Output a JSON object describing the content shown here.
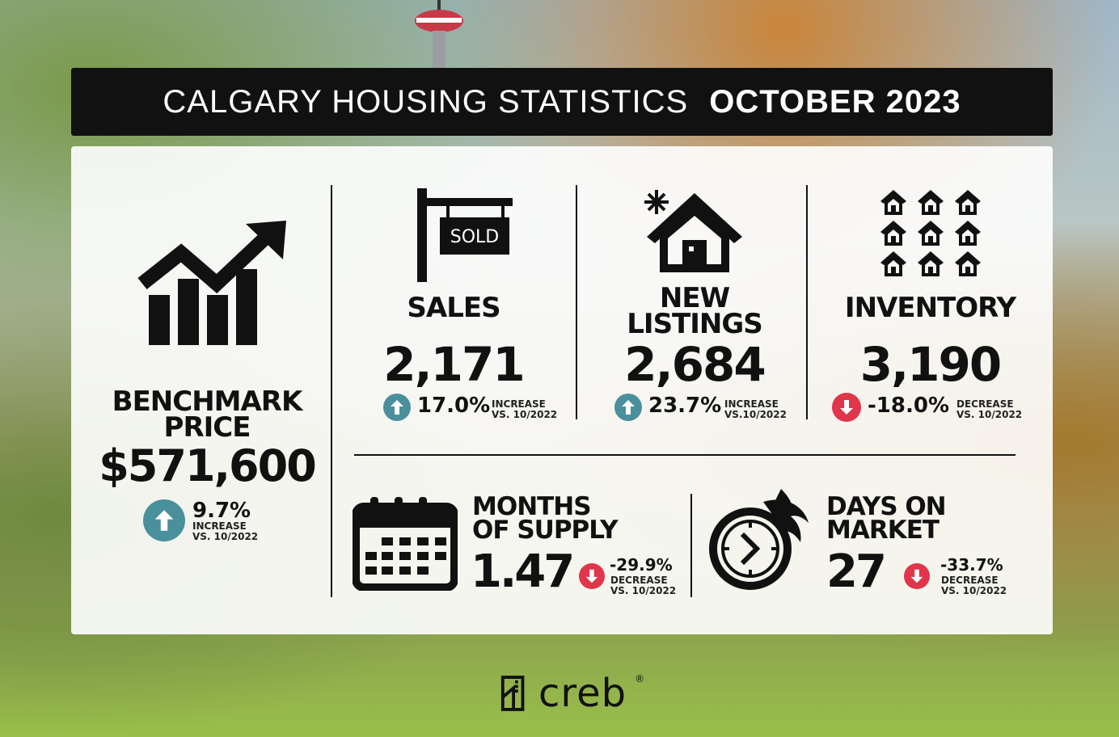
{
  "header": {
    "title": "CALGARY HOUSING STATISTICS",
    "period": "OCTOBER 2023"
  },
  "benchmark": {
    "label_line1": "BENCHMARK",
    "label_line2": "PRICE",
    "value": "$571,600",
    "change": "9.7%",
    "direction_text": "INCREASE",
    "compare": "VS. 10/2022",
    "icon": "growth-chart-icon",
    "trend_icon": "arrow-up-icon"
  },
  "sales": {
    "label": "SALES",
    "sign_text": "SOLD",
    "value": "2,171",
    "change": "17.0%",
    "direction_text": "INCREASE",
    "compare": "VS. 10/2022",
    "icon": "sold-sign-icon"
  },
  "new_listings": {
    "label_line1": "NEW",
    "label_line2": "LISTINGS",
    "value": "2,684",
    "change": "23.7%",
    "direction_text": "INCREASE",
    "compare": "VS.10/2022",
    "icon": "new-house-icon"
  },
  "inventory": {
    "label": "INVENTORY",
    "value": "3,190",
    "change": "-18.0%",
    "direction_text": "DECREASE",
    "compare": "VS. 10/2022",
    "icon": "houses-grid-icon"
  },
  "months_supply": {
    "label_line1": "MONTHS",
    "label_line2": "OF SUPPLY",
    "value": "1.47",
    "change": "-29.9%",
    "direction_text": "DECREASE",
    "compare": "VS. 10/2022",
    "icon": "calendar-icon"
  },
  "days_on_market": {
    "label_line1": "DAYS ON",
    "label_line2": "MARKET",
    "value": "27",
    "change": "-33.7%",
    "direction_text": "DECREASE",
    "compare": "VS. 10/2022",
    "icon": "fast-clock-icon"
  },
  "brand": {
    "name": "creb",
    "mark": "®"
  },
  "colors": {
    "up": "#4a8f9c",
    "down": "#e0354a",
    "ink": "#111111"
  }
}
